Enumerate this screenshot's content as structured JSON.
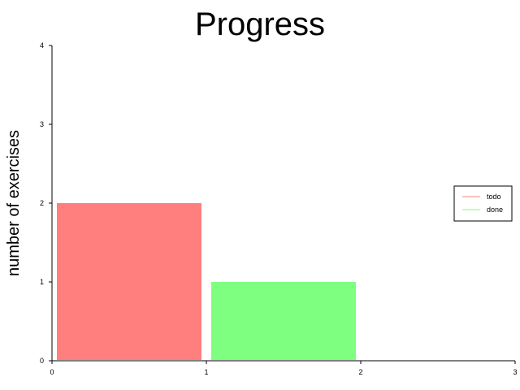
{
  "chart_data": {
    "type": "bar",
    "title": "Progress",
    "xlabel": "",
    "ylabel": "number of exercises",
    "xlim": [
      0,
      3
    ],
    "ylim": [
      0,
      4
    ],
    "xticks": [
      0,
      1,
      2,
      3
    ],
    "yticks": [
      0,
      1,
      2,
      3,
      4
    ],
    "grid": false,
    "legend_position": "right",
    "series": [
      {
        "name": "todo",
        "x_start": 0,
        "x_end": 1,
        "value": 2,
        "color": "#ff7f7f"
      },
      {
        "name": "done",
        "x_start": 1,
        "x_end": 2,
        "value": 1,
        "color": "#7fff7f"
      }
    ]
  }
}
